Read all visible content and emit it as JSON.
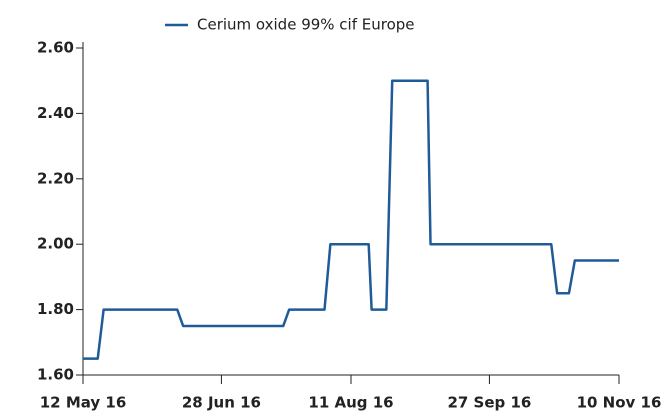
{
  "chart_data": {
    "type": "line",
    "series": [
      {
        "name": "Cerium oxide 99% cif Europe",
        "color": "#1f5b99",
        "x": [
          "2016-05-12",
          "2016-05-17",
          "2016-05-19",
          "2016-06-13",
          "2016-06-15",
          "2016-07-19",
          "2016-07-21",
          "2016-08-02",
          "2016-08-04",
          "2016-08-17",
          "2016-08-18",
          "2016-08-23",
          "2016-08-25",
          "2016-09-06",
          "2016-09-07",
          "2016-10-18",
          "2016-10-20",
          "2016-10-24",
          "2016-10-26",
          "2016-11-10"
        ],
        "values": [
          1.65,
          1.65,
          1.8,
          1.8,
          1.75,
          1.75,
          1.8,
          1.8,
          2.0,
          2.0,
          1.8,
          1.8,
          2.5,
          2.5,
          2.0,
          2.0,
          1.85,
          1.85,
          1.95,
          1.95
        ]
      }
    ],
    "xlim": [
      "2016-05-12",
      "2016-11-10"
    ],
    "xticks": [
      {
        "value": "2016-05-12",
        "label": "12 May 16"
      },
      {
        "value": "2016-06-28",
        "label": "28 Jun 16"
      },
      {
        "value": "2016-08-11",
        "label": "11 Aug 16"
      },
      {
        "value": "2016-09-27",
        "label": "27 Sep 16"
      },
      {
        "value": "2016-11-10",
        "label": "10 Nov 16"
      }
    ],
    "ylim": [
      1.6,
      2.6
    ],
    "yticks": [
      {
        "value": 1.6,
        "label": "1.60"
      },
      {
        "value": 1.8,
        "label": "1.80"
      },
      {
        "value": 2.0,
        "label": "2.00"
      },
      {
        "value": 2.2,
        "label": "2.20"
      },
      {
        "value": 2.4,
        "label": "2.40"
      },
      {
        "value": 2.6,
        "label": "2.60"
      }
    ],
    "legend": "top"
  }
}
